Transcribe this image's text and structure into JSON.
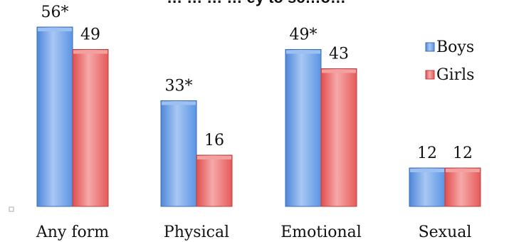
{
  "chart_data": {
    "type": "bar",
    "title": "… … … … ey to sc…o…",
    "categories": [
      "Any form",
      "Physical",
      "Emotional",
      "Sexual"
    ],
    "series": [
      {
        "name": "Boys",
        "color": "#5b93e3",
        "values": [
          56,
          33,
          49,
          12
        ],
        "labels": [
          "56*",
          "33*",
          "49*",
          "12"
        ]
      },
      {
        "name": "Girls",
        "color": "#e55a5a",
        "values": [
          49,
          16,
          43,
          12
        ],
        "labels": [
          "49",
          "16",
          "43",
          "12"
        ]
      }
    ],
    "ylim": [
      0,
      60
    ],
    "grid": false,
    "legend_position": "right"
  }
}
